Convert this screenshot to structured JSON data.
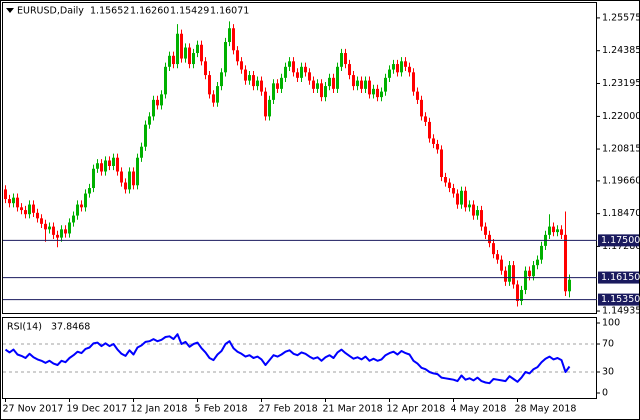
{
  "chart_data": {
    "type": "candlestick",
    "title": "EURUSD,Daily",
    "header_values": [
      "1.15652",
      "1.16260",
      "1.15429",
      "1.16071"
    ],
    "colors": {
      "up": "#00b000",
      "down": "#ff0000"
    },
    "categories": [
      "27 Nov 2017",
      null,
      null,
      null,
      null,
      null,
      null,
      null,
      null,
      null,
      null,
      null,
      null,
      null,
      null,
      null,
      "19 Dec 2017",
      null,
      null,
      null,
      null,
      null,
      null,
      null,
      null,
      null,
      null,
      null,
      null,
      null,
      null,
      null,
      "12 Jan 2018",
      null,
      null,
      null,
      null,
      null,
      null,
      null,
      null,
      null,
      null,
      null,
      null,
      null,
      null,
      null,
      "5 Feb 2018",
      null,
      null,
      null,
      null,
      null,
      null,
      null,
      null,
      null,
      null,
      null,
      null,
      null,
      null,
      null,
      "27 Feb 2018",
      null,
      null,
      null,
      null,
      null,
      null,
      null,
      null,
      null,
      null,
      null,
      null,
      null,
      null,
      null,
      "21 Mar 2018",
      null,
      null,
      null,
      null,
      null,
      null,
      null,
      null,
      null,
      null,
      null,
      null,
      null,
      null,
      null,
      "12 Apr 2018",
      null,
      null,
      null,
      null,
      null,
      null,
      null,
      null,
      null,
      null,
      null,
      null,
      null,
      null,
      null,
      "4 May 2018",
      null,
      null,
      null,
      null,
      null,
      null,
      null,
      null,
      null,
      null,
      null,
      null,
      null,
      null,
      null,
      "28 May 2018",
      null,
      null,
      null,
      null,
      null,
      null,
      null,
      null,
      null,
      null,
      null,
      null,
      null
    ],
    "candles": [
      [
        1.1935,
        1.195,
        1.1885,
        1.19
      ],
      [
        1.19,
        1.1915,
        1.187,
        1.1885
      ],
      [
        1.1885,
        1.192,
        1.187,
        1.1905
      ],
      [
        1.1905,
        1.192,
        1.1855,
        1.187
      ],
      [
        1.187,
        1.1885,
        1.1845,
        1.186
      ],
      [
        1.186,
        1.1875,
        1.183,
        1.1845
      ],
      [
        1.1845,
        1.1895,
        1.183,
        1.188
      ],
      [
        1.188,
        1.1895,
        1.1835,
        1.185
      ],
      [
        1.185,
        1.1865,
        1.1815,
        1.183
      ],
      [
        1.183,
        1.1845,
        1.1795,
        1.181
      ],
      [
        1.181,
        1.1825,
        1.1745,
        1.179
      ],
      [
        1.179,
        1.1815,
        1.1775,
        1.18
      ],
      [
        1.18,
        1.1815,
        1.1755,
        1.177
      ],
      [
        1.177,
        1.1785,
        1.1725,
        1.176
      ],
      [
        1.176,
        1.1805,
        1.1745,
        1.179
      ],
      [
        1.179,
        1.1805,
        1.176,
        1.1775
      ],
      [
        1.1775,
        1.183,
        1.176,
        1.1815
      ],
      [
        1.1815,
        1.1855,
        1.18,
        1.184
      ],
      [
        1.184,
        1.1895,
        1.1825,
        1.188
      ],
      [
        1.188,
        1.1895,
        1.1855,
        1.187
      ],
      [
        1.187,
        1.1935,
        1.1855,
        1.192
      ],
      [
        1.192,
        1.1955,
        1.1905,
        1.194
      ],
      [
        1.194,
        1.2025,
        1.1925,
        1.201
      ],
      [
        1.201,
        1.2045,
        1.1995,
        1.203
      ],
      [
        1.203,
        1.2045,
        1.1985,
        1.2
      ],
      [
        1.2,
        1.2055,
        1.1985,
        1.204
      ],
      [
        1.204,
        1.2055,
        1.2005,
        1.202
      ],
      [
        1.202,
        1.2065,
        1.2005,
        1.205
      ],
      [
        1.205,
        1.2065,
        1.1985,
        1.2
      ],
      [
        1.2,
        1.2015,
        1.1945,
        1.196
      ],
      [
        1.196,
        1.1975,
        1.192,
        1.1935
      ],
      [
        1.1935,
        1.2015,
        1.192,
        1.2
      ],
      [
        1.2,
        1.2015,
        1.1935,
        1.195
      ],
      [
        1.195,
        1.2065,
        1.1935,
        1.205
      ],
      [
        1.205,
        1.2105,
        1.2035,
        1.209
      ],
      [
        1.209,
        1.2185,
        1.2075,
        1.217
      ],
      [
        1.217,
        1.2215,
        1.2155,
        1.22
      ],
      [
        1.22,
        1.2275,
        1.2185,
        1.226
      ],
      [
        1.226,
        1.2275,
        1.2225,
        1.224
      ],
      [
        1.224,
        1.2295,
        1.2225,
        1.228
      ],
      [
        1.228,
        1.2395,
        1.2265,
        1.238
      ],
      [
        1.238,
        1.2435,
        1.2365,
        1.242
      ],
      [
        1.242,
        1.2435,
        1.2375,
        1.239
      ],
      [
        1.239,
        1.2535,
        1.2375,
        1.25
      ],
      [
        1.25,
        1.2515,
        1.2395,
        1.241
      ],
      [
        1.241,
        1.2465,
        1.2395,
        1.245
      ],
      [
        1.245,
        1.2465,
        1.2375,
        1.239
      ],
      [
        1.239,
        1.2445,
        1.2375,
        1.243
      ],
      [
        1.243,
        1.2475,
        1.2415,
        1.246
      ],
      [
        1.246,
        1.2475,
        1.2385,
        1.24
      ],
      [
        1.24,
        1.2415,
        1.2335,
        1.235
      ],
      [
        1.235,
        1.2365,
        1.2265,
        1.228
      ],
      [
        1.228,
        1.2295,
        1.2235,
        1.225
      ],
      [
        1.225,
        1.2325,
        1.2235,
        1.231
      ],
      [
        1.231,
        1.2375,
        1.2295,
        1.236
      ],
      [
        1.236,
        1.2485,
        1.2345,
        1.247
      ],
      [
        1.247,
        1.2545,
        1.2455,
        1.252
      ],
      [
        1.252,
        1.2535,
        1.2425,
        1.244
      ],
      [
        1.244,
        1.2455,
        1.2385,
        1.24
      ],
      [
        1.24,
        1.2415,
        1.2355,
        1.237
      ],
      [
        1.237,
        1.2385,
        1.2315,
        1.233
      ],
      [
        1.233,
        1.2365,
        1.2315,
        1.235
      ],
      [
        1.235,
        1.2365,
        1.2295,
        1.231
      ],
      [
        1.231,
        1.2345,
        1.2295,
        1.233
      ],
      [
        1.233,
        1.2345,
        1.2275,
        1.229
      ],
      [
        1.229,
        1.2305,
        1.2185,
        1.22
      ],
      [
        1.22,
        1.2275,
        1.2185,
        1.226
      ],
      [
        1.226,
        1.2335,
        1.2245,
        1.232
      ],
      [
        1.232,
        1.2335,
        1.2285,
        1.23
      ],
      [
        1.23,
        1.2355,
        1.2285,
        1.234
      ],
      [
        1.234,
        1.2395,
        1.2325,
        1.238
      ],
      [
        1.238,
        1.2415,
        1.2365,
        1.24
      ],
      [
        1.24,
        1.2415,
        1.2345,
        1.236
      ],
      [
        1.236,
        1.2375,
        1.2325,
        1.234
      ],
      [
        1.234,
        1.2395,
        1.2325,
        1.238
      ],
      [
        1.238,
        1.2395,
        1.2345,
        1.236
      ],
      [
        1.236,
        1.2375,
        1.2315,
        1.233
      ],
      [
        1.233,
        1.2345,
        1.2285,
        1.23
      ],
      [
        1.23,
        1.2335,
        1.2285,
        1.232
      ],
      [
        1.232,
        1.2335,
        1.2255,
        1.227
      ],
      [
        1.227,
        1.2325,
        1.2255,
        1.231
      ],
      [
        1.231,
        1.2355,
        1.2295,
        1.234
      ],
      [
        1.234,
        1.2355,
        1.2285,
        1.23
      ],
      [
        1.23,
        1.2395,
        1.2285,
        1.238
      ],
      [
        1.238,
        1.2445,
        1.2365,
        1.243
      ],
      [
        1.243,
        1.2445,
        1.2375,
        1.239
      ],
      [
        1.239,
        1.2405,
        1.2335,
        1.235
      ],
      [
        1.235,
        1.2365,
        1.2295,
        1.231
      ],
      [
        1.231,
        1.2345,
        1.2295,
        1.233
      ],
      [
        1.233,
        1.2345,
        1.2285,
        1.23
      ],
      [
        1.23,
        1.2345,
        1.2285,
        1.233
      ],
      [
        1.233,
        1.2345,
        1.2265,
        1.228
      ],
      [
        1.228,
        1.2315,
        1.2265,
        1.23
      ],
      [
        1.23,
        1.2315,
        1.2255,
        1.227
      ],
      [
        1.227,
        1.2305,
        1.2255,
        1.229
      ],
      [
        1.229,
        1.2355,
        1.2275,
        1.234
      ],
      [
        1.234,
        1.2385,
        1.2325,
        1.237
      ],
      [
        1.237,
        1.2405,
        1.2355,
        1.239
      ],
      [
        1.239,
        1.2405,
        1.2345,
        1.236
      ],
      [
        1.236,
        1.2415,
        1.2345,
        1.24
      ],
      [
        1.24,
        1.2415,
        1.2365,
        1.238
      ],
      [
        1.238,
        1.2395,
        1.2345,
        1.236
      ],
      [
        1.236,
        1.2375,
        1.2275,
        1.229
      ],
      [
        1.229,
        1.2305,
        1.2245,
        1.226
      ],
      [
        1.226,
        1.2275,
        1.2185,
        1.22
      ],
      [
        1.22,
        1.2215,
        1.2165,
        1.218
      ],
      [
        1.218,
        1.2195,
        1.2105,
        1.212
      ],
      [
        1.212,
        1.2135,
        1.2085,
        1.21
      ],
      [
        1.21,
        1.2115,
        1.2065,
        1.208
      ],
      [
        1.208,
        1.2095,
        1.1965,
        1.198
      ],
      [
        1.198,
        1.1995,
        1.1945,
        1.196
      ],
      [
        1.196,
        1.1975,
        1.1925,
        1.194
      ],
      [
        1.194,
        1.1955,
        1.1905,
        1.192
      ],
      [
        1.192,
        1.1935,
        1.1865,
        1.188
      ],
      [
        1.188,
        1.1945,
        1.1865,
        1.193
      ],
      [
        1.193,
        1.1945,
        1.1855,
        1.187
      ],
      [
        1.187,
        1.1895,
        1.1855,
        1.188
      ],
      [
        1.188,
        1.1895,
        1.1825,
        1.184
      ],
      [
        1.184,
        1.1875,
        1.1825,
        1.186
      ],
      [
        1.186,
        1.1875,
        1.1785,
        1.18
      ],
      [
        1.18,
        1.1815,
        1.1755,
        1.177
      ],
      [
        1.177,
        1.1785,
        1.1725,
        1.174
      ],
      [
        1.174,
        1.1755,
        1.1685,
        1.17
      ],
      [
        1.17,
        1.1715,
        1.1665,
        1.168
      ],
      [
        1.168,
        1.1695,
        1.1625,
        1.164
      ],
      [
        1.164,
        1.1655,
        1.1585,
        1.16
      ],
      [
        1.16,
        1.1675,
        1.1585,
        1.166
      ],
      [
        1.166,
        1.1675,
        1.1575,
        1.159
      ],
      [
        1.159,
        1.1605,
        1.151,
        1.153
      ],
      [
        1.153,
        1.1585,
        1.1515,
        1.157
      ],
      [
        1.157,
        1.1655,
        1.1555,
        1.164
      ],
      [
        1.164,
        1.1655,
        1.1605,
        1.162
      ],
      [
        1.162,
        1.1675,
        1.1605,
        1.166
      ],
      [
        1.166,
        1.1695,
        1.1645,
        1.168
      ],
      [
        1.168,
        1.1745,
        1.1665,
        1.173
      ],
      [
        1.173,
        1.1785,
        1.1715,
        1.177
      ],
      [
        1.177,
        1.1845,
        1.1755,
        1.18
      ],
      [
        1.18,
        1.1815,
        1.1765,
        1.178
      ],
      [
        1.178,
        1.1805,
        1.1765,
        1.179
      ],
      [
        1.179,
        1.1805,
        1.1755,
        1.177
      ],
      [
        1.177,
        1.1855,
        1.1548,
        1.15652
      ],
      [
        1.15652,
        1.1626,
        1.15429,
        1.16071
      ]
    ],
    "ylim": [
      1.149,
      1.2608
    ],
    "yticks": [
      1.25575,
      1.24385,
      1.23195,
      {
        "value": 1.22,
        "label": "1.22000"
      },
      1.20815,
      {
        "value": 1.1966,
        "label": "1.19660"
      },
      {
        "value": 1.1847,
        "label": "1.18470"
      },
      {
        "value": 1.1728,
        "label": "1.17280"
      },
      1.14935
    ],
    "hlines": [
      {
        "value": 1.175,
        "label": "1.17500"
      },
      {
        "value": 1.1615,
        "label": "1.16150"
      },
      {
        "value": 1.1535,
        "label": "1.15350"
      }
    ],
    "hline_color": "#1a1a5e",
    "rsi": {
      "title": "RSI(14)",
      "color": "#0000ff",
      "ylim": [
        0,
        100
      ],
      "yticks": [
        100,
        70,
        30,
        0
      ],
      "levels": [
        70,
        30
      ],
      "values": [
        62,
        58,
        62,
        55,
        53,
        50,
        56,
        51,
        48,
        46,
        43,
        46,
        42,
        40,
        46,
        44,
        50,
        54,
        59,
        57,
        63,
        65,
        71,
        72,
        67,
        71,
        67,
        70,
        62,
        56,
        53,
        61,
        55,
        65,
        68,
        73,
        74,
        77,
        74,
        76,
        80,
        81,
        77,
        84,
        70,
        73,
        66,
        70,
        72,
        64,
        58,
        50,
        47,
        55,
        60,
        70,
        74,
        64,
        59,
        56,
        52,
        54,
        50,
        52,
        48,
        40,
        47,
        54,
        52,
        55,
        59,
        61,
        56,
        54,
        58,
        56,
        52,
        49,
        51,
        46,
        51,
        54,
        50,
        58,
        62,
        57,
        53,
        49,
        51,
        48,
        52,
        46,
        49,
        46,
        48,
        54,
        57,
        59,
        55,
        60,
        57,
        55,
        46,
        42,
        36,
        34,
        30,
        28,
        27,
        22,
        21,
        20,
        19,
        17,
        25,
        19,
        21,
        18,
        22,
        17,
        15,
        14,
        20,
        19,
        18,
        17,
        24,
        20,
        16,
        22,
        30,
        28,
        34,
        37,
        44,
        49,
        52,
        48,
        50,
        47,
        30,
        37.8468
      ]
    }
  }
}
